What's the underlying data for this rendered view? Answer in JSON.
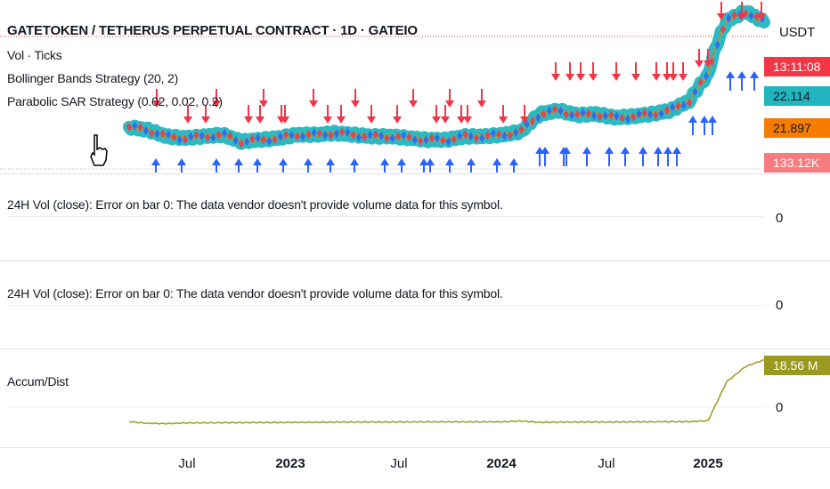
{
  "header": {
    "title": "GATETOKEN / TETHERUS PERPETUAL CONTRACT · 1D · GATEIO",
    "currency": "USDT"
  },
  "legend": {
    "vol": "Vol · Ticks",
    "bb": "Bollinger Bands Strategy (20, 2)",
    "psar": "Parabolic SAR Strategy (0.02, 0.02, 0.2)"
  },
  "price_scale": {
    "countdown": "13:11:08",
    "tag_teal": "22.114",
    "tag_orange": "21.897",
    "tag_volume": "133.12K",
    "colors": {
      "red": "#f23645",
      "teal": "#22b5bf",
      "orange": "#f57c00",
      "volume": "#f77c80"
    }
  },
  "panes": {
    "vol1": {
      "label": "24H Vol (close): Error on bar 0: The data vendor doesn't provide volume data for this symbol.",
      "zero": "0"
    },
    "vol2": {
      "label": "24H Vol (close): Error on bar 0: The data vendor doesn't provide volume data for this symbol.",
      "zero": "0"
    },
    "accum": {
      "label": "Accum/Dist",
      "value_tag": "18.56 M",
      "zero": "0",
      "color": "#9a9a1e"
    }
  },
  "time_axis": [
    {
      "label": "Jul",
      "bold": false
    },
    {
      "label": "2023",
      "bold": true
    },
    {
      "label": "Jul",
      "bold": false
    },
    {
      "label": "2024",
      "bold": true
    },
    {
      "label": "Jul",
      "bold": false
    },
    {
      "label": "2025",
      "bold": true
    }
  ],
  "chart_data": {
    "type": "line",
    "price_series": {
      "name": "GATETOKEN / TETHERUS PERPETUAL CONTRACT",
      "x": [
        "2022-05",
        "2022-06",
        "2022-07",
        "2022-08",
        "2022-09",
        "2022-10",
        "2022-11",
        "2022-12",
        "2023-01",
        "2023-02",
        "2023-03",
        "2023-04",
        "2023-05",
        "2023-06",
        "2023-07",
        "2023-08",
        "2023-09",
        "2023-10",
        "2023-11",
        "2023-12",
        "2024-01",
        "2024-02",
        "2024-03",
        "2024-04",
        "2024-05",
        "2024-06",
        "2024-07",
        "2024-08",
        "2024-09",
        "2024-10",
        "2024-11",
        "2024-12",
        "2025-01",
        "2025-02",
        "2025-03"
      ],
      "values": [
        4.6,
        4.4,
        4.0,
        3.9,
        4.0,
        4.1,
        3.7,
        3.8,
        3.9,
        4.1,
        4.1,
        4.2,
        4.1,
        4.0,
        4.0,
        3.9,
        3.8,
        3.8,
        4.0,
        4.0,
        4.1,
        4.3,
        5.6,
        5.9,
        5.5,
        5.6,
        5.3,
        5.4,
        5.6,
        5.9,
        6.8,
        10.0,
        22.5,
        26.0,
        22.1
      ]
    },
    "accum_dist": {
      "name": "Accum/Dist",
      "x": [
        "2022-05",
        "2022-06",
        "2022-07",
        "2022-08",
        "2022-09",
        "2022-10",
        "2022-11",
        "2022-12",
        "2023-01",
        "2023-02",
        "2023-03",
        "2023-04",
        "2023-05",
        "2023-06",
        "2023-07",
        "2023-08",
        "2023-09",
        "2023-10",
        "2023-11",
        "2023-12",
        "2024-01",
        "2024-02",
        "2024-03",
        "2024-04",
        "2024-05",
        "2024-06",
        "2024-07",
        "2024-08",
        "2024-09",
        "2024-10",
        "2024-11",
        "2024-12",
        "2025-01",
        "2025-02",
        "2025-03"
      ],
      "values": [
        0.0,
        -0.5,
        -0.6,
        -0.4,
        -0.35,
        -0.3,
        -0.3,
        -0.25,
        -0.25,
        -0.2,
        -0.2,
        -0.15,
        -0.15,
        -0.1,
        -0.1,
        -0.1,
        -0.05,
        -0.05,
        -0.05,
        -0.05,
        -0.05,
        0.2,
        -0.2,
        -0.15,
        -0.1,
        -0.1,
        -0.1,
        -0.05,
        -0.05,
        0.0,
        0.0,
        0.3,
        12.0,
        16.5,
        18.56
      ],
      "unit": "M"
    }
  }
}
